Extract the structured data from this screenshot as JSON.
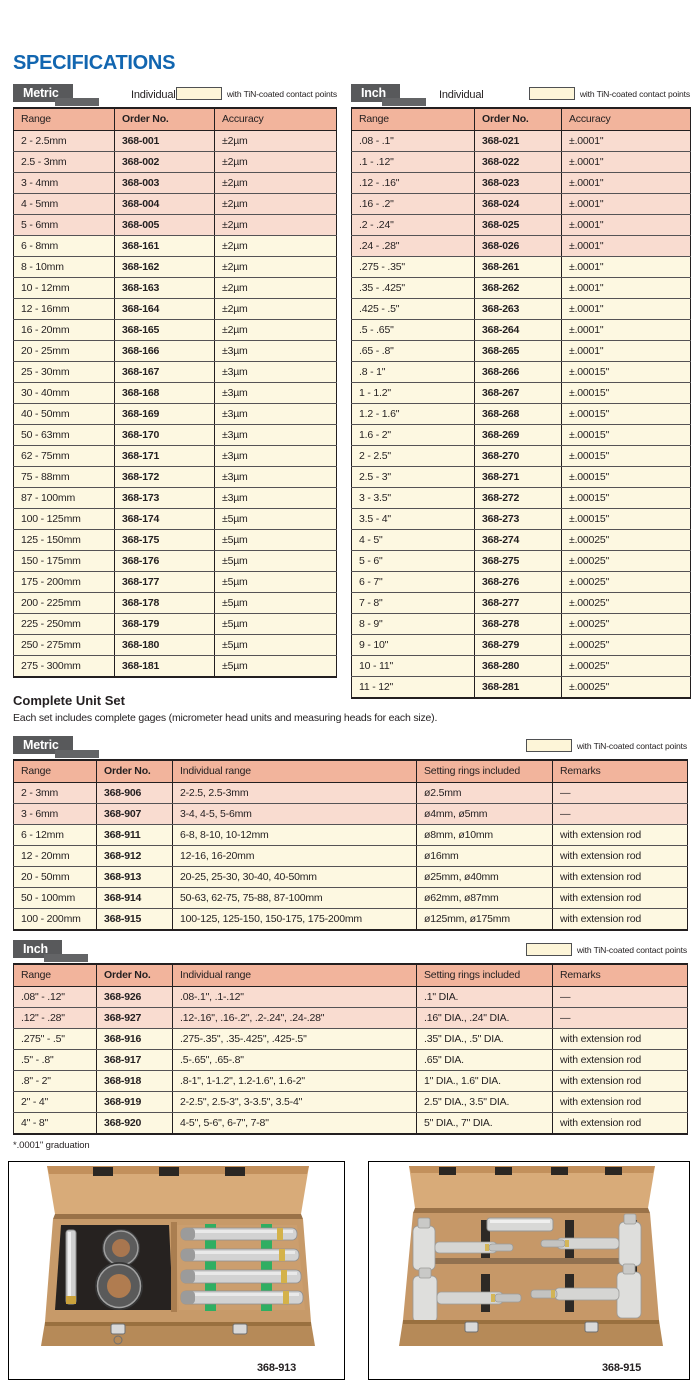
{
  "page": {
    "title": "SPECIFICATIONS",
    "accent_blue": "#1266b0"
  },
  "tabs": {
    "metric": "Metric",
    "inch": "Inch"
  },
  "individual_label": "Individual",
  "legend": {
    "label": "with TiN-coated contact points",
    "swatch_color": "#fdf5d8"
  },
  "individual": {
    "metric": {
      "columns": [
        "Range",
        "Order No.",
        "Accuracy"
      ],
      "rows": [
        {
          "range": "2 - 2.5mm",
          "order": "368-001",
          "accuracy": "±2µm",
          "tone": "pink"
        },
        {
          "range": "2.5 - 3mm",
          "order": "368-002",
          "accuracy": "±2µm",
          "tone": "pink"
        },
        {
          "range": "3 - 4mm",
          "order": "368-003",
          "accuracy": "±2µm",
          "tone": "pink"
        },
        {
          "range": "4 - 5mm",
          "order": "368-004",
          "accuracy": "±2µm",
          "tone": "pink"
        },
        {
          "range": "5 - 6mm",
          "order": "368-005",
          "accuracy": "±2µm",
          "tone": "pink"
        },
        {
          "range": "6 - 8mm",
          "order": "368-161",
          "accuracy": "±2µm",
          "tone": "cream"
        },
        {
          "range": "8 - 10mm",
          "order": "368-162",
          "accuracy": "±2µm",
          "tone": "cream"
        },
        {
          "range": "10 - 12mm",
          "order": "368-163",
          "accuracy": "±2µm",
          "tone": "cream"
        },
        {
          "range": "12 - 16mm",
          "order": "368-164",
          "accuracy": "±2µm",
          "tone": "cream"
        },
        {
          "range": "16 - 20mm",
          "order": "368-165",
          "accuracy": "±2µm",
          "tone": "cream"
        },
        {
          "range": "20 - 25mm",
          "order": "368-166",
          "accuracy": "±3µm",
          "tone": "cream"
        },
        {
          "range": "25 - 30mm",
          "order": "368-167",
          "accuracy": "±3µm",
          "tone": "cream"
        },
        {
          "range": "30 - 40mm",
          "order": "368-168",
          "accuracy": "±3µm",
          "tone": "cream"
        },
        {
          "range": "40 - 50mm",
          "order": "368-169",
          "accuracy": "±3µm",
          "tone": "cream"
        },
        {
          "range": "50 - 63mm",
          "order": "368-170",
          "accuracy": "±3µm",
          "tone": "cream"
        },
        {
          "range": "62 - 75mm",
          "order": "368-171",
          "accuracy": "±3µm",
          "tone": "cream"
        },
        {
          "range": "75 - 88mm",
          "order": "368-172",
          "accuracy": "±3µm",
          "tone": "cream"
        },
        {
          "range": "87 - 100mm",
          "order": "368-173",
          "accuracy": "±3µm",
          "tone": "cream"
        },
        {
          "range": "100 - 125mm",
          "order": "368-174",
          "accuracy": "±5µm",
          "tone": "cream"
        },
        {
          "range": "125 - 150mm",
          "order": "368-175",
          "accuracy": "±5µm",
          "tone": "cream"
        },
        {
          "range": "150 - 175mm",
          "order": "368-176",
          "accuracy": "±5µm",
          "tone": "cream"
        },
        {
          "range": "175 - 200mm",
          "order": "368-177",
          "accuracy": "±5µm",
          "tone": "cream"
        },
        {
          "range": "200 - 225mm",
          "order": "368-178",
          "accuracy": "±5µm",
          "tone": "cream"
        },
        {
          "range": "225 - 250mm",
          "order": "368-179",
          "accuracy": "±5µm",
          "tone": "cream"
        },
        {
          "range": "250 - 275mm",
          "order": "368-180",
          "accuracy": "±5µm",
          "tone": "cream"
        },
        {
          "range": "275 - 300mm",
          "order": "368-181",
          "accuracy": "±5µm",
          "tone": "cream"
        }
      ]
    },
    "inch": {
      "columns": [
        "Range",
        "Order No.",
        "Accuracy"
      ],
      "rows": [
        {
          "range": ".08 - .1\"",
          "order": "368-021",
          "accuracy": "±.0001\"",
          "tone": "pink"
        },
        {
          "range": ".1 - .12\"",
          "order": "368-022",
          "accuracy": "±.0001\"",
          "tone": "pink"
        },
        {
          "range": ".12 - .16\"",
          "order": "368-023",
          "accuracy": "±.0001\"",
          "tone": "pink"
        },
        {
          "range": ".16 - .2\"",
          "order": "368-024",
          "accuracy": "±.0001\"",
          "tone": "pink"
        },
        {
          "range": ".2 - .24\"",
          "order": "368-025",
          "accuracy": "±.0001\"",
          "tone": "pink"
        },
        {
          "range": ".24 - .28\"",
          "order": "368-026",
          "accuracy": "±.0001\"",
          "tone": "pink"
        },
        {
          "range": ".275 - .35\"",
          "order": "368-261",
          "accuracy": "±.0001\"",
          "tone": "cream"
        },
        {
          "range": ".35 - .425\"",
          "order": "368-262",
          "accuracy": "±.0001\"",
          "tone": "cream"
        },
        {
          "range": ".425 - .5\"",
          "order": "368-263",
          "accuracy": "±.0001\"",
          "tone": "cream"
        },
        {
          "range": ".5 - .65\"",
          "order": "368-264",
          "accuracy": "±.0001\"",
          "tone": "cream"
        },
        {
          "range": ".65 - .8\"",
          "order": "368-265",
          "accuracy": "±.0001\"",
          "tone": "cream"
        },
        {
          "range": ".8 - 1\"",
          "order": "368-266",
          "accuracy": "±.00015\"",
          "tone": "cream"
        },
        {
          "range": "1 - 1.2\"",
          "order": "368-267",
          "accuracy": "±.00015\"",
          "tone": "cream"
        },
        {
          "range": "1.2 - 1.6\"",
          "order": "368-268",
          "accuracy": "±.00015\"",
          "tone": "cream"
        },
        {
          "range": "1.6 - 2\"",
          "order": "368-269",
          "accuracy": "±.00015\"",
          "tone": "cream"
        },
        {
          "range": "2 - 2.5\"",
          "order": "368-270",
          "accuracy": "±.00015\"",
          "tone": "cream"
        },
        {
          "range": "2.5 - 3\"",
          "order": "368-271",
          "accuracy": "±.00015\"",
          "tone": "cream"
        },
        {
          "range": "3 - 3.5\"",
          "order": "368-272",
          "accuracy": "±.00015\"",
          "tone": "cream"
        },
        {
          "range": "3.5 - 4\"",
          "order": "368-273",
          "accuracy": "±.00015\"",
          "tone": "cream"
        },
        {
          "range": "4 - 5\"",
          "order": "368-274",
          "accuracy": "±.00025\"",
          "tone": "cream"
        },
        {
          "range": "5 - 6\"",
          "order": "368-275",
          "accuracy": "±.00025\"",
          "tone": "cream"
        },
        {
          "range": "6 - 7\"",
          "order": "368-276",
          "accuracy": "±.00025\"",
          "tone": "cream"
        },
        {
          "range": "7 - 8\"",
          "order": "368-277",
          "accuracy": "±.00025\"",
          "tone": "cream"
        },
        {
          "range": "8 - 9\"",
          "order": "368-278",
          "accuracy": "±.00025\"",
          "tone": "cream"
        },
        {
          "range": "9 - 10\"",
          "order": "368-279",
          "accuracy": "±.00025\"",
          "tone": "cream"
        },
        {
          "range": "10 - 11\"",
          "order": "368-280",
          "accuracy": "±.00025\"",
          "tone": "cream"
        },
        {
          "range": "11 - 12\"",
          "order": "368-281",
          "accuracy": "±.00025\"",
          "tone": "cream"
        }
      ]
    }
  },
  "complete_unit_set": {
    "heading": "Complete Unit Set",
    "description": "Each set includes complete gages (micrometer head units and measuring heads for each size).",
    "columns": [
      "Range",
      "Order No.",
      "Individual range",
      "Setting rings included",
      "Remarks"
    ],
    "metric_rows": [
      {
        "range": "2 - 3mm",
        "order": "368-906",
        "individual_range": "2-2.5, 2.5-3mm",
        "rings": "ø2.5mm",
        "remarks": "—",
        "tone": "pink"
      },
      {
        "range": "3 - 6mm",
        "order": "368-907",
        "individual_range": "3-4, 4-5, 5-6mm",
        "rings": "ø4mm, ø5mm",
        "remarks": "—",
        "tone": "pink"
      },
      {
        "range": "6 - 12mm",
        "order": "368-911",
        "individual_range": "6-8, 8-10, 10-12mm",
        "rings": "ø8mm, ø10mm",
        "remarks": "with extension rod",
        "tone": "cream"
      },
      {
        "range": "12 - 20mm",
        "order": "368-912",
        "individual_range": "12-16, 16-20mm",
        "rings": "ø16mm",
        "remarks": "with extension rod",
        "tone": "cream"
      },
      {
        "range": "20 - 50mm",
        "order": "368-913",
        "individual_range": "20-25, 25-30, 30-40, 40-50mm",
        "rings": "ø25mm, ø40mm",
        "remarks": "with extension rod",
        "tone": "cream"
      },
      {
        "range": "50 - 100mm",
        "order": "368-914",
        "individual_range": "50-63, 62-75, 75-88, 87-100mm",
        "rings": "ø62mm, ø87mm",
        "remarks": "with extension rod",
        "tone": "cream"
      },
      {
        "range": "100 - 200mm",
        "order": "368-915",
        "individual_range": "100-125, 125-150, 150-175, 175-200mm",
        "rings": "ø125mm, ø175mm",
        "remarks": "with extension rod",
        "tone": "cream"
      }
    ],
    "inch_rows": [
      {
        "range": ".08\" - .12\"",
        "order": "368-926",
        "individual_range": ".08-.1\", .1-.12\"",
        "rings": ".1\" DIA.",
        "remarks": "—",
        "tone": "pink"
      },
      {
        "range": ".12\" - .28\"",
        "order": "368-927",
        "individual_range": ".12-.16\", .16-.2\", .2-.24\", .24-.28\"",
        "rings": ".16\" DIA., .24\" DIA.",
        "remarks": "—",
        "tone": "pink"
      },
      {
        "range": ".275\" - .5\"",
        "order": "368-916",
        "individual_range": ".275-.35\", .35-.425\", .425-.5\"",
        "rings": ".35\" DIA., .5\" DIA.",
        "remarks": "with extension rod",
        "tone": "cream"
      },
      {
        "range": ".5\" - .8\"",
        "order": "368-917",
        "individual_range": ".5-.65\", .65-.8\"",
        "rings": ".65\" DIA.",
        "remarks": "with extension rod",
        "tone": "cream"
      },
      {
        "range": ".8\" - 2\"",
        "order": "368-918",
        "individual_range": ".8-1\", 1-1.2\", 1.2-1.6\", 1.6-2\"",
        "rings": "1\" DIA., 1.6\" DIA.",
        "remarks": "with extension rod",
        "tone": "cream"
      },
      {
        "range": "2\" - 4\"",
        "order": "368-919",
        "individual_range": "2-2.5\", 2.5-3\", 3-3.5\", 3.5-4\"",
        "rings": "2.5\" DIA., 3.5\" DIA.",
        "remarks": "with extension rod",
        "tone": "cream"
      },
      {
        "range": "4\" - 8\"",
        "order": "368-920",
        "individual_range": "4-5\", 5-6\", 6-7\", 7-8\"",
        "rings": "5\" DIA., 7\" DIA.",
        "remarks": "with extension rod",
        "tone": "cream"
      }
    ]
  },
  "footnote": "*.0001\" graduation",
  "images": [
    {
      "caption": "368-913",
      "alt": "wooden case set with setting rings and four micrometer heads"
    },
    {
      "caption": "368-915",
      "alt": "wooden case set with four large three-point micrometers"
    }
  ]
}
